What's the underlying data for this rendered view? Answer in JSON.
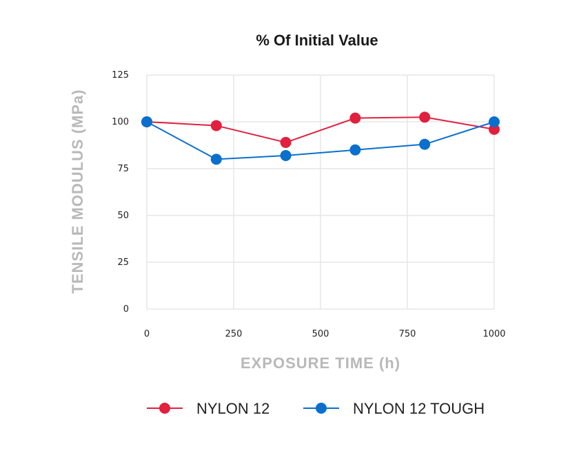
{
  "chart_data": {
    "type": "line",
    "title": "% Of Initial Value",
    "xlabel": "EXPOSURE TIME (h)",
    "ylabel": "TENSILE MODULUS (MPa)",
    "xlim": [
      0,
      1000
    ],
    "ylim": [
      0,
      125
    ],
    "x_ticks": [
      "0",
      "250",
      "500",
      "750",
      "1000"
    ],
    "x_tick_values": [
      0,
      250,
      500,
      750,
      1000
    ],
    "y_ticks": [
      "0",
      "25",
      "50",
      "75",
      "100",
      "125"
    ],
    "y_tick_values": [
      0,
      25,
      50,
      75,
      100,
      125
    ],
    "grid": true,
    "legend_position": "bottom",
    "series": [
      {
        "name": "NYLON 12",
        "color": "#e0203e",
        "x": [
          0,
          200,
          400,
          600,
          800,
          1000
        ],
        "values": [
          100,
          98,
          89,
          102,
          102.5,
          96
        ]
      },
      {
        "name": "NYLON 12 TOUGH",
        "color": "#0a6fcd",
        "x": [
          0,
          200,
          400,
          600,
          800,
          1000
        ],
        "values": [
          100,
          80,
          82,
          85,
          88,
          100
        ]
      }
    ]
  }
}
